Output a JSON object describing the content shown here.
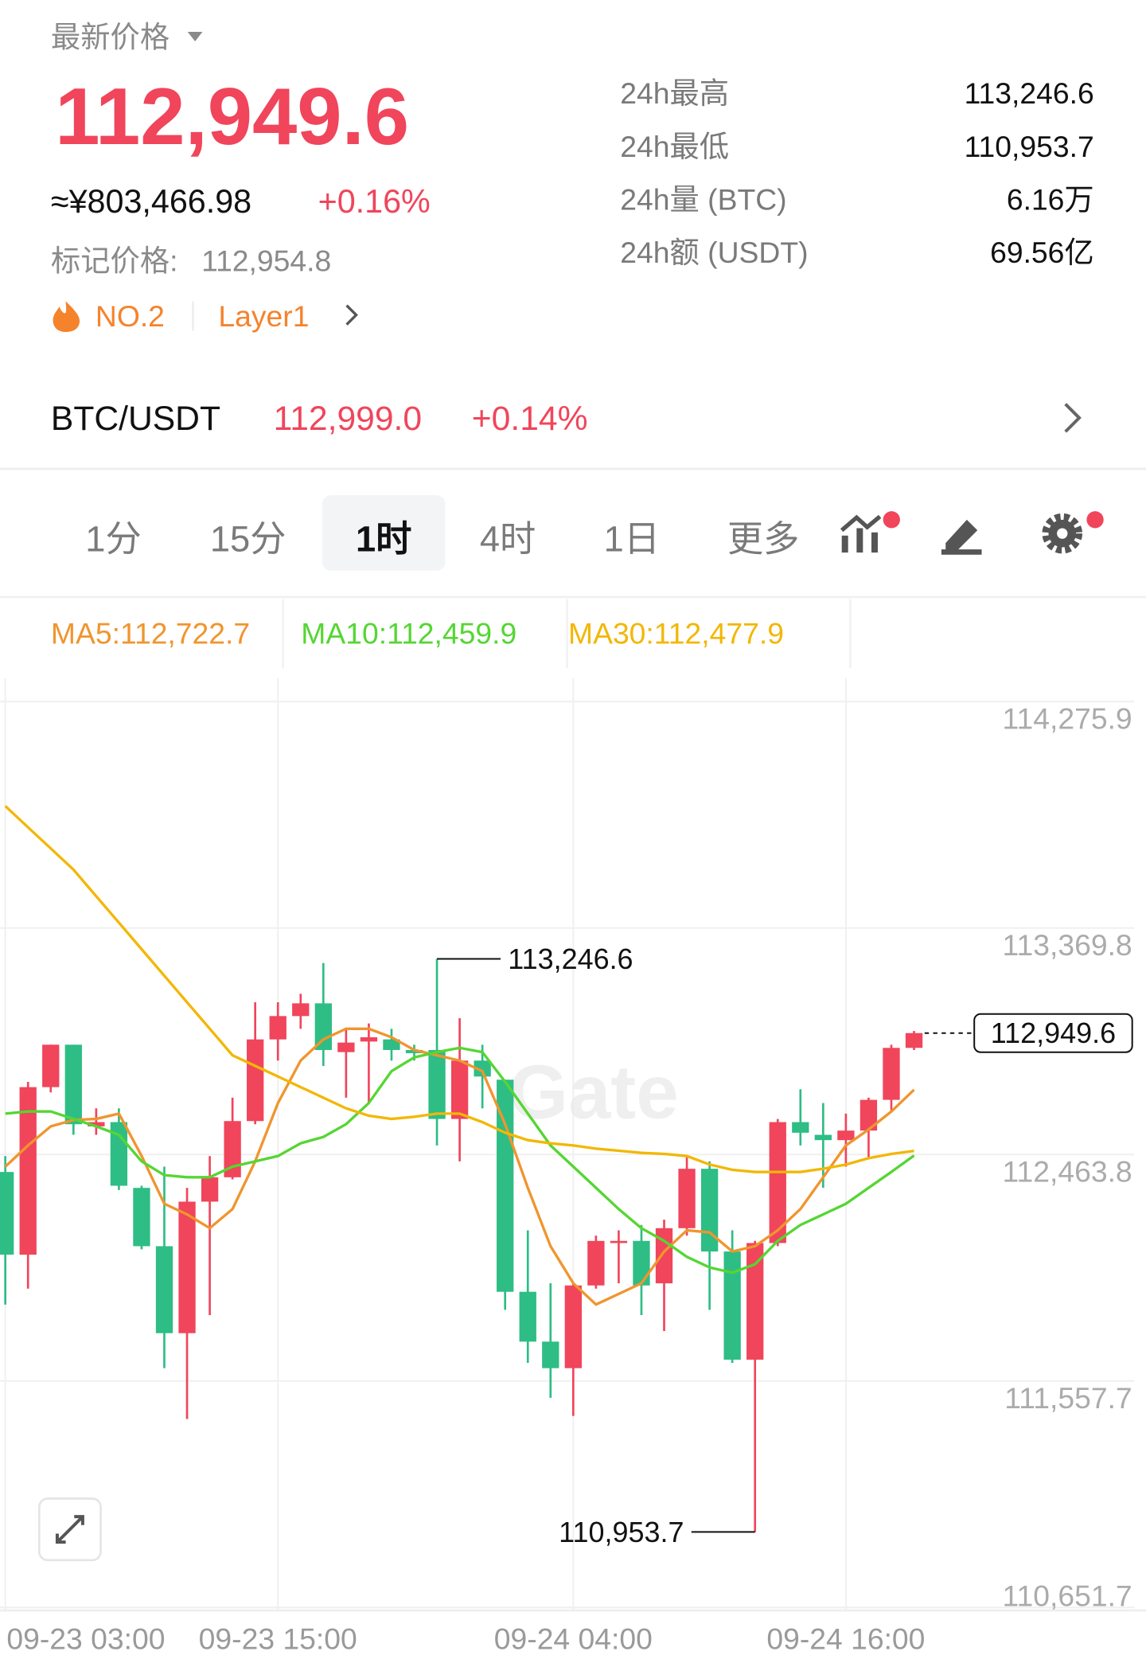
{
  "header": {
    "price_label": "最新价格",
    "last_price": "112,949.6",
    "cny_price": "≈¥803,466.98",
    "change": "+0.16%",
    "mark_price_label": "标记价格:",
    "mark_price": "112,954.8",
    "rank": "NO.2",
    "sector": "Layer1"
  },
  "stats": [
    {
      "label": "24h最高",
      "value": "113,246.6"
    },
    {
      "label": "24h最低",
      "value": "110,953.7"
    },
    {
      "label": "24h量 (BTC)",
      "value": "6.16万"
    },
    {
      "label": "24h额 (USDT)",
      "value": "69.56亿"
    }
  ],
  "pair": {
    "symbol": "BTC/USDT",
    "price": "112,999.0",
    "change": "+0.14%"
  },
  "tabs": {
    "items": [
      "1分",
      "15分",
      "1时",
      "4时",
      "1日",
      "更多"
    ],
    "selected": 2
  },
  "chart_data": {
    "type": "candlestick",
    "categories": [
      "09-23 03:00",
      null,
      null,
      null,
      null,
      null,
      null,
      null,
      null,
      null,
      null,
      null,
      "09-23 15:00",
      null,
      null,
      null,
      null,
      null,
      null,
      null,
      null,
      null,
      null,
      null,
      null,
      "09-24 04:00",
      null,
      null,
      null,
      null,
      null,
      null,
      null,
      null,
      null,
      null,
      null,
      "09-24 16:00",
      null,
      null,
      null
    ],
    "open": [
      112394.0,
      112063.1,
      112733.4,
      112903.1,
      112576.4,
      112593.4,
      112330.3,
      112097.0,
      111749.1,
      112275.2,
      112372.8,
      112597.6,
      112924.3,
      113017.7,
      113068.6,
      112873.4,
      112915.8,
      112924.3,
      112881.9,
      112881.9,
      112606.1,
      112839.5,
      112763.1,
      111914.6,
      111715.2,
      111609.1,
      111940.0,
      112109.7,
      112118.2,
      111948.5,
      112169.1,
      112406.7,
      112075.8,
      111643.1,
      112109.7,
      112593.4,
      112542.5,
      112521.3,
      112559.5,
      112682.5,
      112890.4
    ],
    "high": [
      112457.6,
      112754.6,
      112903.1,
      112903.1,
      112648.5,
      112648.5,
      112338.8,
      112415.2,
      112330.3,
      112457.6,
      112691.0,
      113072.8,
      113072.8,
      113106.8,
      113229.8,
      112966.8,
      112988.0,
      112966.8,
      112903.1,
      113246.6,
      113009.2,
      112903.1,
      112763.1,
      112160.6,
      111948.5,
      111948.5,
      112139.4,
      112160.6,
      112181.8,
      112203.1,
      112457.6,
      112436.4,
      112160.6,
      112118.2,
      112606.1,
      112724.9,
      112669.8,
      112627.3,
      112691.0,
      112903.1,
      112958.0
    ],
    "low": [
      111863.6,
      111927.3,
      112712.2,
      112542.5,
      112542.5,
      112321.8,
      112084.3,
      111609.1,
      111405.5,
      111821.3,
      112364.3,
      112584.9,
      112839.5,
      112966.8,
      112818.3,
      112691.0,
      112669.8,
      112839.5,
      112839.5,
      112500.0,
      112436.4,
      112648.5,
      111842.5,
      111630.3,
      111490.3,
      111418.2,
      111927.3,
      111948.5,
      111821.3,
      111757.6,
      112139.4,
      111842.5,
      111630.3,
      110953.7,
      112097.0,
      112500.0,
      112330.3,
      112415.2,
      112449.1,
      112635.8,
      112881.9
    ],
    "close": [
      112063.1,
      112733.4,
      112903.1,
      112584.9,
      112593.4,
      112338.8,
      112097.0,
      111749.1,
      112275.2,
      112372.8,
      112597.6,
      112924.3,
      113017.7,
      113068.6,
      112881.9,
      112911.6,
      112932.8,
      112881.9,
      112869.2,
      112606.1,
      112839.5,
      112775.8,
      111914.6,
      111715.2,
      111609.1,
      111940.0,
      112118.2,
      112118.2,
      111940.0,
      112169.1,
      112406.7,
      112075.8,
      111643.1,
      112109.7,
      112593.4,
      112551.0,
      112521.3,
      112559.5,
      112682.5,
      112890.4,
      112949.6
    ],
    "up_color": "#f0455b",
    "down_color": "#2ebd85",
    "overlays": [
      {
        "name": "MA5:112,722.7",
        "color": "#f0952e",
        "values": [
          112415.2,
          112500.0,
          112576.4,
          112601.9,
          112606.1,
          112627.3,
          112457.6,
          112266.7,
          112224.3,
          112169.1,
          112245.5,
          112436.4,
          112669.8,
          112839.5,
          112924.3,
          112966.7,
          112966.7,
          112932.8,
          112881.9,
          112860.7,
          112839.5,
          112797.0,
          112584.9,
          112330.3,
          112097.0,
          111948.5,
          111863.6,
          111906.1,
          111948.5,
          112075.8,
          112160.6,
          112152.1,
          112075.8,
          112097.0,
          112160.6,
          112245.5,
          112372.8,
          112500.0,
          112563.7,
          112635.8,
          112722.7
        ]
      },
      {
        "name": "MA10:112,459.9",
        "color": "#55d633",
        "values": [
          112627.3,
          112635.8,
          112635.8,
          112606.1,
          112576.4,
          112542.5,
          112436.4,
          112381.3,
          112372.8,
          112372.8,
          112415.2,
          112436.4,
          112457.6,
          112508.5,
          112534.0,
          112584.9,
          112669.8,
          112797.0,
          112852.2,
          112873.4,
          112890.4,
          112873.4,
          112754.6,
          112627.3,
          112500.0,
          112415.2,
          112330.3,
          112245.5,
          112169.1,
          112118.2,
          112054.6,
          112012.1,
          111990.9,
          112024.9,
          112118.2,
          112181.8,
          112224.3,
          112266.7,
          112330.3,
          112394.0,
          112459.9
        ]
      },
      {
        "name": "MA30:112,477.9",
        "color": "#f2b705",
        "values": [
          113857.7,
          113772.9,
          113688.0,
          113603.1,
          113497.1,
          113391.0,
          113284.9,
          113178.9,
          113072.8,
          112966.7,
          112860.7,
          112818.2,
          112775.8,
          112733.4,
          112691.0,
          112648.5,
          112618.8,
          112606.1,
          112614.6,
          112627.3,
          112627.3,
          112593.4,
          112551.0,
          112521.3,
          112508.5,
          112500.0,
          112487.3,
          112478.8,
          112470.3,
          112466.1,
          112457.6,
          112423.7,
          112402.5,
          112394.0,
          112394.0,
          112394.0,
          112406.7,
          112423.7,
          112449.1,
          112466.1,
          112477.9
        ]
      }
    ],
    "ylim": [
      110640,
      114370
    ],
    "yticks": [
      {
        "value": 114275.9,
        "label": "114,275.9"
      },
      {
        "value": 113369.8,
        "label": "113,369.8"
      },
      {
        "value": 112463.8,
        "label": "112,463.8"
      },
      {
        "value": 111557.7,
        "label": "111,557.7"
      },
      {
        "value": 110651.7,
        "label": "110,651.7"
      }
    ],
    "grid": true,
    "high_label": "113,246.6",
    "low_label": "110,953.7",
    "last_label": "112,949.6",
    "watermark": "Gate"
  }
}
